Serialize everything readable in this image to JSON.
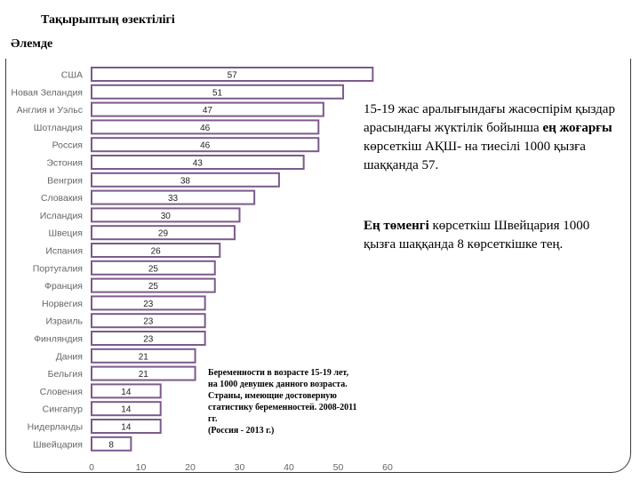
{
  "slide": {
    "title": "Тақырыптың өзектілігі",
    "subtitle": "Әлемде",
    "para1": {
      "part1": "15-19 жас аралығындағы жасөспірім қыздар арасындағы жүктілік бойынша ",
      "bold": "ең жоғарғы",
      "part2": " көрсеткіш АҚШ- на тиесілі 1000 қызға шаққанда 57."
    },
    "para2": {
      "bold": "Ең төменгі",
      "part2": " көрсеткіш  Швейцария 1000 қызға шаққанда 8 көрсеткішке тең."
    },
    "caption": [
      "Беременности в возрасте 15-19 лет,",
      "на 1000 девушек данного возраста.",
      "Страны, имеющие достоверную",
      "статистику беременностей. 2008-2011",
      "гг.",
      "(Россия - 2013 г.)"
    ]
  },
  "chart_data": {
    "type": "bar",
    "orientation": "horizontal",
    "categories": [
      "США",
      "Новая Зеландия",
      "Англия и Уэльс",
      "Шотландия",
      "Россия",
      "Эстония",
      "Венгрия",
      "Словакия",
      "Исландия",
      "Швеция",
      "Испания",
      "Португалия",
      "Франция",
      "Норвегия",
      "Израиль",
      "Финляндия",
      "Дания",
      "Бельгия",
      "Словения",
      "Сингапур",
      "Нидерланды",
      "Швейцария"
    ],
    "values": [
      57,
      51,
      47,
      46,
      46,
      43,
      38,
      33,
      30,
      29,
      26,
      25,
      25,
      23,
      23,
      23,
      21,
      21,
      14,
      14,
      14,
      8
    ],
    "x_ticks": [
      "0",
      "10",
      "20",
      "30",
      "40",
      "50",
      "60"
    ],
    "xlim": [
      0,
      60
    ],
    "bar_fill": "#ffffff",
    "bar_border": "#7b5a8c",
    "grid": false
  }
}
